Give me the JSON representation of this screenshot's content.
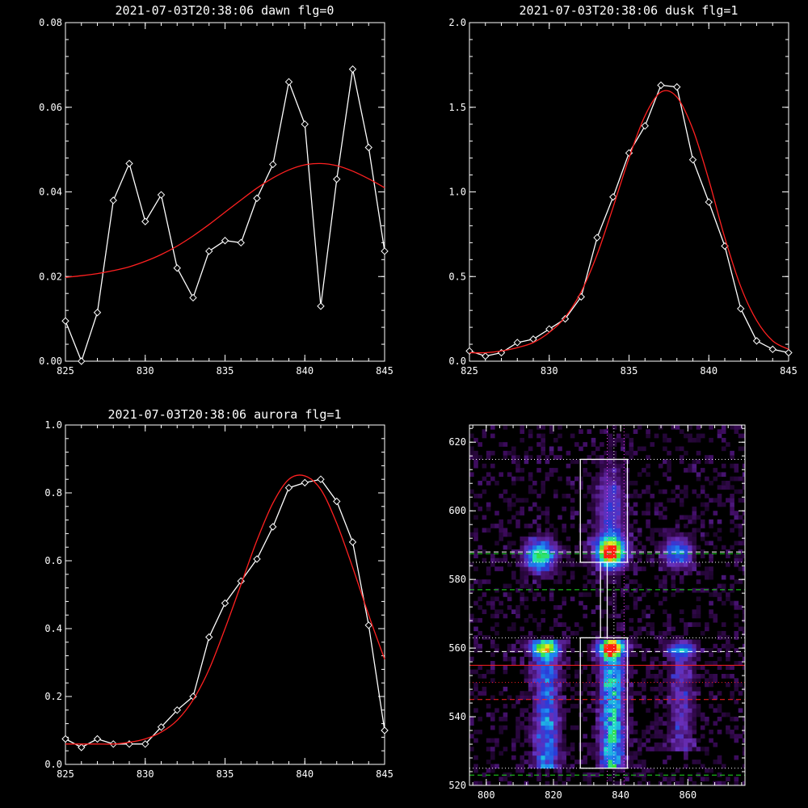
{
  "colors": {
    "background": "#000000",
    "axes": "#ffffff",
    "data_line": "#ffffff",
    "fit_line": "#ff2020"
  },
  "chart_data": [
    {
      "type": "line",
      "title": "2021-07-03T20:38:06 dawn flg=0",
      "xlabel": "",
      "ylabel": "",
      "xlim": [
        825,
        845
      ],
      "ylim": [
        0,
        0.08
      ],
      "xticks": [
        "825",
        "830",
        "835",
        "840",
        "845"
      ],
      "yticks": [
        "0.00",
        "0.02",
        "0.04",
        "0.06",
        "0.08"
      ],
      "x": [
        825,
        826,
        827,
        828,
        829,
        830,
        831,
        832,
        833,
        834,
        835,
        836,
        837,
        838,
        839,
        840,
        841,
        842,
        843,
        844,
        845
      ],
      "series": [
        {
          "style": "data",
          "marker": "diamond",
          "color": "#ffffff",
          "values": [
            0.0095,
            0.0,
            0.0115,
            0.038,
            0.0467,
            0.033,
            0.0393,
            0.022,
            0.015,
            0.026,
            0.0285,
            0.028,
            0.0385,
            0.0465,
            0.066,
            0.056,
            0.013,
            0.043,
            0.069,
            0.0505,
            0.026
          ]
        },
        {
          "style": "fit",
          "color": "#ff2020",
          "values": [
            0.0198,
            0.0202,
            0.0207,
            0.0214,
            0.0223,
            0.0236,
            0.0252,
            0.0272,
            0.0296,
            0.0323,
            0.0352,
            0.0381,
            0.0409,
            0.0433,
            0.0452,
            0.0464,
            0.0467,
            0.0462,
            0.0449,
            0.0431,
            0.041
          ]
        }
      ]
    },
    {
      "type": "line",
      "title": "2021-07-03T20:38:06 dusk flg=1",
      "xlabel": "",
      "ylabel": "",
      "xlim": [
        825,
        845
      ],
      "ylim": [
        0,
        2.0
      ],
      "xticks": [
        "825",
        "830",
        "835",
        "840",
        "845"
      ],
      "yticks": [
        "0.0",
        "0.5",
        "1.0",
        "1.5",
        "2.0"
      ],
      "x": [
        825,
        826,
        827,
        828,
        829,
        830,
        831,
        832,
        833,
        834,
        835,
        836,
        837,
        838,
        839,
        840,
        841,
        842,
        843,
        844,
        845
      ],
      "series": [
        {
          "style": "data",
          "marker": "diamond",
          "color": "#ffffff",
          "values": [
            0.06,
            0.03,
            0.05,
            0.11,
            0.13,
            0.19,
            0.25,
            0.38,
            0.73,
            0.97,
            1.23,
            1.39,
            1.63,
            1.62,
            1.19,
            0.94,
            0.68,
            0.31,
            0.12,
            0.07,
            0.05
          ]
        },
        {
          "style": "fit",
          "color": "#ff2020",
          "values": [
            0.05,
            0.05,
            0.06,
            0.08,
            0.11,
            0.17,
            0.26,
            0.41,
            0.63,
            0.91,
            1.2,
            1.45,
            1.59,
            1.56,
            1.37,
            1.07,
            0.73,
            0.44,
            0.24,
            0.12,
            0.07
          ]
        }
      ]
    },
    {
      "type": "line",
      "title": "2021-07-03T20:38:06 aurora flg=1",
      "xlabel": "",
      "ylabel": "",
      "xlim": [
        825,
        845
      ],
      "ylim": [
        0,
        1.0
      ],
      "xticks": [
        "825",
        "830",
        "835",
        "840",
        "845"
      ],
      "yticks": [
        "0.0",
        "0.2",
        "0.4",
        "0.6",
        "0.8",
        "1.0"
      ],
      "x": [
        825,
        826,
        827,
        828,
        829,
        830,
        831,
        832,
        833,
        834,
        835,
        836,
        837,
        838,
        839,
        840,
        841,
        842,
        843,
        844,
        845
      ],
      "series": [
        {
          "style": "data",
          "marker": "diamond",
          "color": "#ffffff",
          "values": [
            0.075,
            0.05,
            0.075,
            0.06,
            0.06,
            0.06,
            0.11,
            0.16,
            0.2,
            0.375,
            0.475,
            0.54,
            0.605,
            0.7,
            0.815,
            0.83,
            0.84,
            0.775,
            0.655,
            0.41,
            0.1
          ]
        },
        {
          "style": "fit",
          "color": "#ff2020",
          "values": [
            0.06,
            0.06,
            0.06,
            0.06,
            0.065,
            0.075,
            0.095,
            0.13,
            0.19,
            0.28,
            0.4,
            0.53,
            0.66,
            0.77,
            0.84,
            0.85,
            0.81,
            0.71,
            0.58,
            0.44,
            0.31
          ]
        }
      ]
    },
    {
      "type": "heatmap",
      "title": "",
      "xlim": [
        795,
        877
      ],
      "ylim": [
        520,
        625
      ],
      "xticks": [
        "800",
        "820",
        "840",
        "860"
      ],
      "yticks": [
        "520",
        "540",
        "560",
        "580",
        "600",
        "620"
      ],
      "colorscale": [
        "#000000",
        "#3a0a58",
        "#6a2fb8",
        "#2a3cd8",
        "#1e8cf0",
        "#22e0d0",
        "#38e030",
        "#f8e820",
        "#ff2010"
      ],
      "blobs": [
        {
          "x": 816,
          "y": 587,
          "sx": 3,
          "sy": 3,
          "amp": 0.72
        },
        {
          "x": 837,
          "y": 588,
          "sx": 3,
          "sy": 3,
          "amp": 1.0
        },
        {
          "x": 857,
          "y": 588,
          "sx": 3,
          "sy": 3,
          "amp": 0.45
        },
        {
          "x": 837,
          "y": 600,
          "sx": 3,
          "sy": 9,
          "amp": 0.3
        },
        {
          "x": 817,
          "y": 560,
          "sx": 3,
          "sy": 1.5,
          "amp": 0.55
        },
        {
          "x": 837,
          "y": 560,
          "sx": 3,
          "sy": 1.5,
          "amp": 0.65
        },
        {
          "x": 858,
          "y": 560,
          "sx": 3,
          "sy": 1.5,
          "amp": 0.4
        }
      ],
      "bands": [
        {
          "x": 818,
          "y0": 525,
          "y1": 562,
          "sx": 2.6,
          "amp": 0.5
        },
        {
          "x": 837.5,
          "y0": 525,
          "y1": 562,
          "sx": 2.4,
          "amp": 0.72
        },
        {
          "x": 858,
          "y0": 530,
          "y1": 560,
          "sx": 2.5,
          "amp": 0.28
        }
      ],
      "boxes": [
        {
          "x0": 828,
          "x1": 842,
          "y0": 585,
          "y1": 615
        },
        {
          "x0": 828,
          "x1": 842,
          "y0": 525,
          "y1": 563
        }
      ],
      "connector": {
        "x0": 834,
        "x1": 836,
        "y0": 563,
        "y1": 585
      },
      "hlines": [
        {
          "y": 615,
          "color": "#ffffff",
          "style": "dotted"
        },
        {
          "y": 588,
          "color": "#ffffff",
          "style": "dashed"
        },
        {
          "y": 587.5,
          "color": "#20e020",
          "style": "dashed"
        },
        {
          "y": 585,
          "color": "#ffffff",
          "style": "dotted"
        },
        {
          "y": 577,
          "color": "#20e020",
          "style": "dashed"
        },
        {
          "y": 563,
          "color": "#ffffff",
          "style": "dotted"
        },
        {
          "y": 559,
          "color": "#ffffff",
          "style": "dashed"
        },
        {
          "y": 555,
          "color": "#ff2020",
          "style": "solid"
        },
        {
          "y": 550,
          "color": "#ff2020",
          "style": "dotted"
        },
        {
          "y": 545,
          "color": "#ff2020",
          "style": "dashed"
        },
        {
          "y": 525,
          "color": "#ffffff",
          "style": "dotted"
        },
        {
          "y": 523,
          "color": "#20e020",
          "style": "dashed"
        }
      ],
      "vlines": [
        {
          "x": 836,
          "color": "#ff40ff",
          "style": "dotted"
        },
        {
          "x": 838,
          "color": "#ffffff",
          "style": "dotted"
        },
        {
          "x": 841,
          "color": "#ff40ff",
          "style": "dotted"
        }
      ]
    }
  ]
}
